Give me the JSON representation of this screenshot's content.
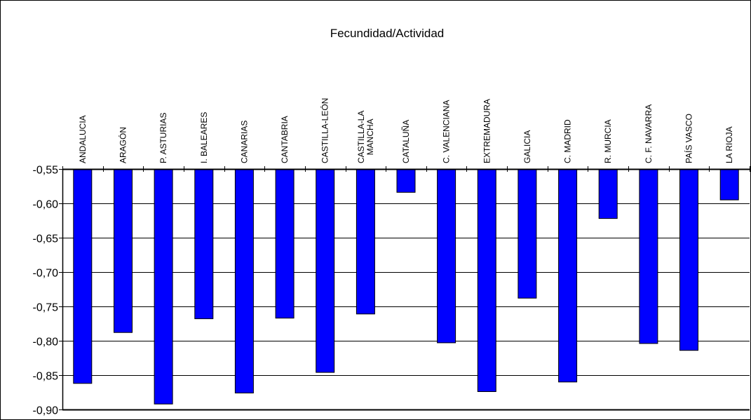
{
  "chart_data": {
    "type": "bar",
    "title": "Fecundidad/Actividad",
    "xlabel": "",
    "ylabel": "",
    "categories": [
      [
        "ANDALUCIA"
      ],
      [
        "ARAGÓN"
      ],
      [
        "P. ASTURIAS"
      ],
      [
        "I. BALEARES"
      ],
      [
        "CANARIAS"
      ],
      [
        "CANTABRIA"
      ],
      [
        "CASTILLA-LEÓN"
      ],
      [
        "CASTILLA-LA",
        "MANCHA"
      ],
      [
        "CATALUÑA"
      ],
      [
        "C. VALENCIANA"
      ],
      [
        "EXTREMADURA"
      ],
      [
        "GALICIA"
      ],
      [
        "C. MADRID"
      ],
      [
        "R. MURCIA"
      ],
      [
        "C. F. NAVARRA"
      ],
      [
        "PAÍS VASCO"
      ],
      [
        "LA RIOJA"
      ]
    ],
    "values": [
      -0.862,
      -0.788,
      -0.892,
      -0.768,
      -0.876,
      -0.767,
      -0.846,
      -0.761,
      -0.584,
      -0.803,
      -0.874,
      -0.738,
      -0.86,
      -0.622,
      -0.804,
      -0.814,
      -0.595
    ],
    "ylim": [
      -0.9,
      -0.55
    ],
    "yticks": [
      -0.55,
      -0.6,
      -0.65,
      -0.7,
      -0.75,
      -0.8,
      -0.85,
      -0.9
    ],
    "ytick_labels": [
      "-0,55",
      "-0,60",
      "-0,65",
      "-0,70",
      "-0,75",
      "-0,80",
      "-0,85",
      "-0,90"
    ],
    "grid": true,
    "bar_color": "#0000ff",
    "bar_border_color": "#000000"
  }
}
